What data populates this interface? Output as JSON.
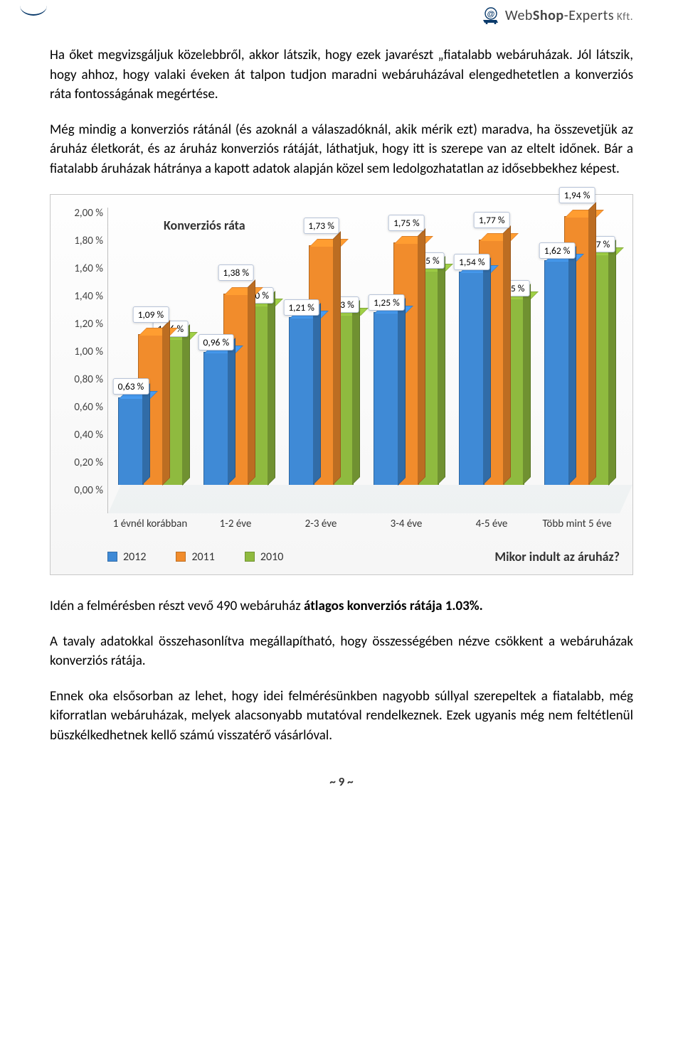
{
  "logo": {
    "web": "Web",
    "shop": "Shop",
    "experts": "-Experts",
    "kft": " Kft."
  },
  "paragraphs": {
    "p1": "Ha őket megvizsgáljuk közelebbről, akkor látszik, hogy ezek javarészt „fiatalabb webáruházak. Jól látszik, hogy ahhoz, hogy valaki éveken át talpon tudjon maradni webáruházával elengedhetetlen a konverziós ráta fontosságának megértése.",
    "p2": "Még mindig a konverziós rátánál (és azoknál a válaszadóknál, akik mérik ezt) maradva, ha összevetjük az áruház életkorát, és az áruház konverziós rátáját, láthatjuk, hogy itt is szerepe van az eltelt időnek. Bár a fiatalabb áruházak hátránya a kapott adatok alapján közel sem ledolgozhatatlan az idősebbekhez képest.",
    "p3_pre": "Idén a felmérésben részt vevő 490 webáruház ",
    "p3_bold": "átlagos konverziós rátája 1.03%.",
    "p4": "A tavaly adatokkal összehasonlítva megállapítható, hogy összességében nézve csökkent a webáruházak konverziós rátája.",
    "p5": "Ennek oka elsősorban az lehet, hogy idei felmérésünkben nagyobb súllyal szerepeltek a fiatalabb, még kiforratlan webáruházak, melyek alacsonyabb mutatóval rendelkeznek. Ezek ugyanis még nem feltétlenül büszkélkedhetnek kellő számú visszatérő vásárlóval."
  },
  "chart": {
    "title": "Konverziós ráta",
    "ymax": 2.0,
    "ytick_step": 0.2,
    "y_ticks": [
      "2,00 %",
      "1,80 %",
      "1,60 %",
      "1,40 %",
      "1,20 %",
      "1,00 %",
      "0,80 %",
      "0,60 %",
      "0,40 %",
      "0,20 %",
      "0,00 %"
    ],
    "colors": {
      "s2012": "#3f8ad6",
      "s2011": "#f18c2c",
      "s2010": "#8fba3f",
      "background": "#fbfbfb",
      "grid": "#d6d6d6"
    },
    "series_names": {
      "s2012": "2012",
      "s2011": "2011",
      "s2010": "2010"
    },
    "categories": [
      {
        "label": "1 évnél korábban",
        "s2012": "0,63 %",
        "s2011": "1,09 %",
        "s2010": "1,06 %",
        "v2012": 0.63,
        "v2011": 1.09,
        "v2010": 1.06
      },
      {
        "label": "1-2 éve",
        "s2012": "0,96 %",
        "s2011": "1,38 %",
        "s2010": "1,30 %",
        "v2012": 0.96,
        "v2011": 1.38,
        "v2010": 1.3
      },
      {
        "label": "2-3 éve",
        "s2012": "1,21 %",
        "s2011": "1,73 %",
        "s2010": "1,23 %",
        "v2012": 1.21,
        "v2011": 1.73,
        "v2010": 1.23
      },
      {
        "label": "3-4 éve",
        "s2012": "1,25 %",
        "s2011": "1,75 %",
        "s2010": "1,55 %",
        "v2012": 1.25,
        "v2011": 1.75,
        "v2010": 1.55
      },
      {
        "label": "4-5 éve",
        "s2012": "1,54 %",
        "s2011": "1,77 %",
        "s2010": "1,35 %",
        "v2012": 1.54,
        "v2011": 1.77,
        "v2010": 1.35
      },
      {
        "label": "Több mint 5 éve",
        "s2012": "1,62 %",
        "s2011": "1,94 %",
        "s2010": "1,67 %",
        "v2012": 1.62,
        "v2011": 1.94,
        "v2010": 1.67
      }
    ],
    "legend_question": "Mikor indult az áruház?",
    "label_offsets": [
      {
        "s2012": -28,
        "s2011": -40,
        "s2010": -26
      },
      {
        "s2012": -26,
        "s2011": -42,
        "s2010": -26
      },
      {
        "s2012": -26,
        "s2011": -40,
        "s2010": -26
      },
      {
        "s2012": -26,
        "s2011": -40,
        "s2010": -26
      },
      {
        "s2012": -26,
        "s2011": -40,
        "s2010": -26
      },
      {
        "s2012": -26,
        "s2011": -42,
        "s2010": -26
      }
    ]
  },
  "page_number": "~ 9 ~"
}
